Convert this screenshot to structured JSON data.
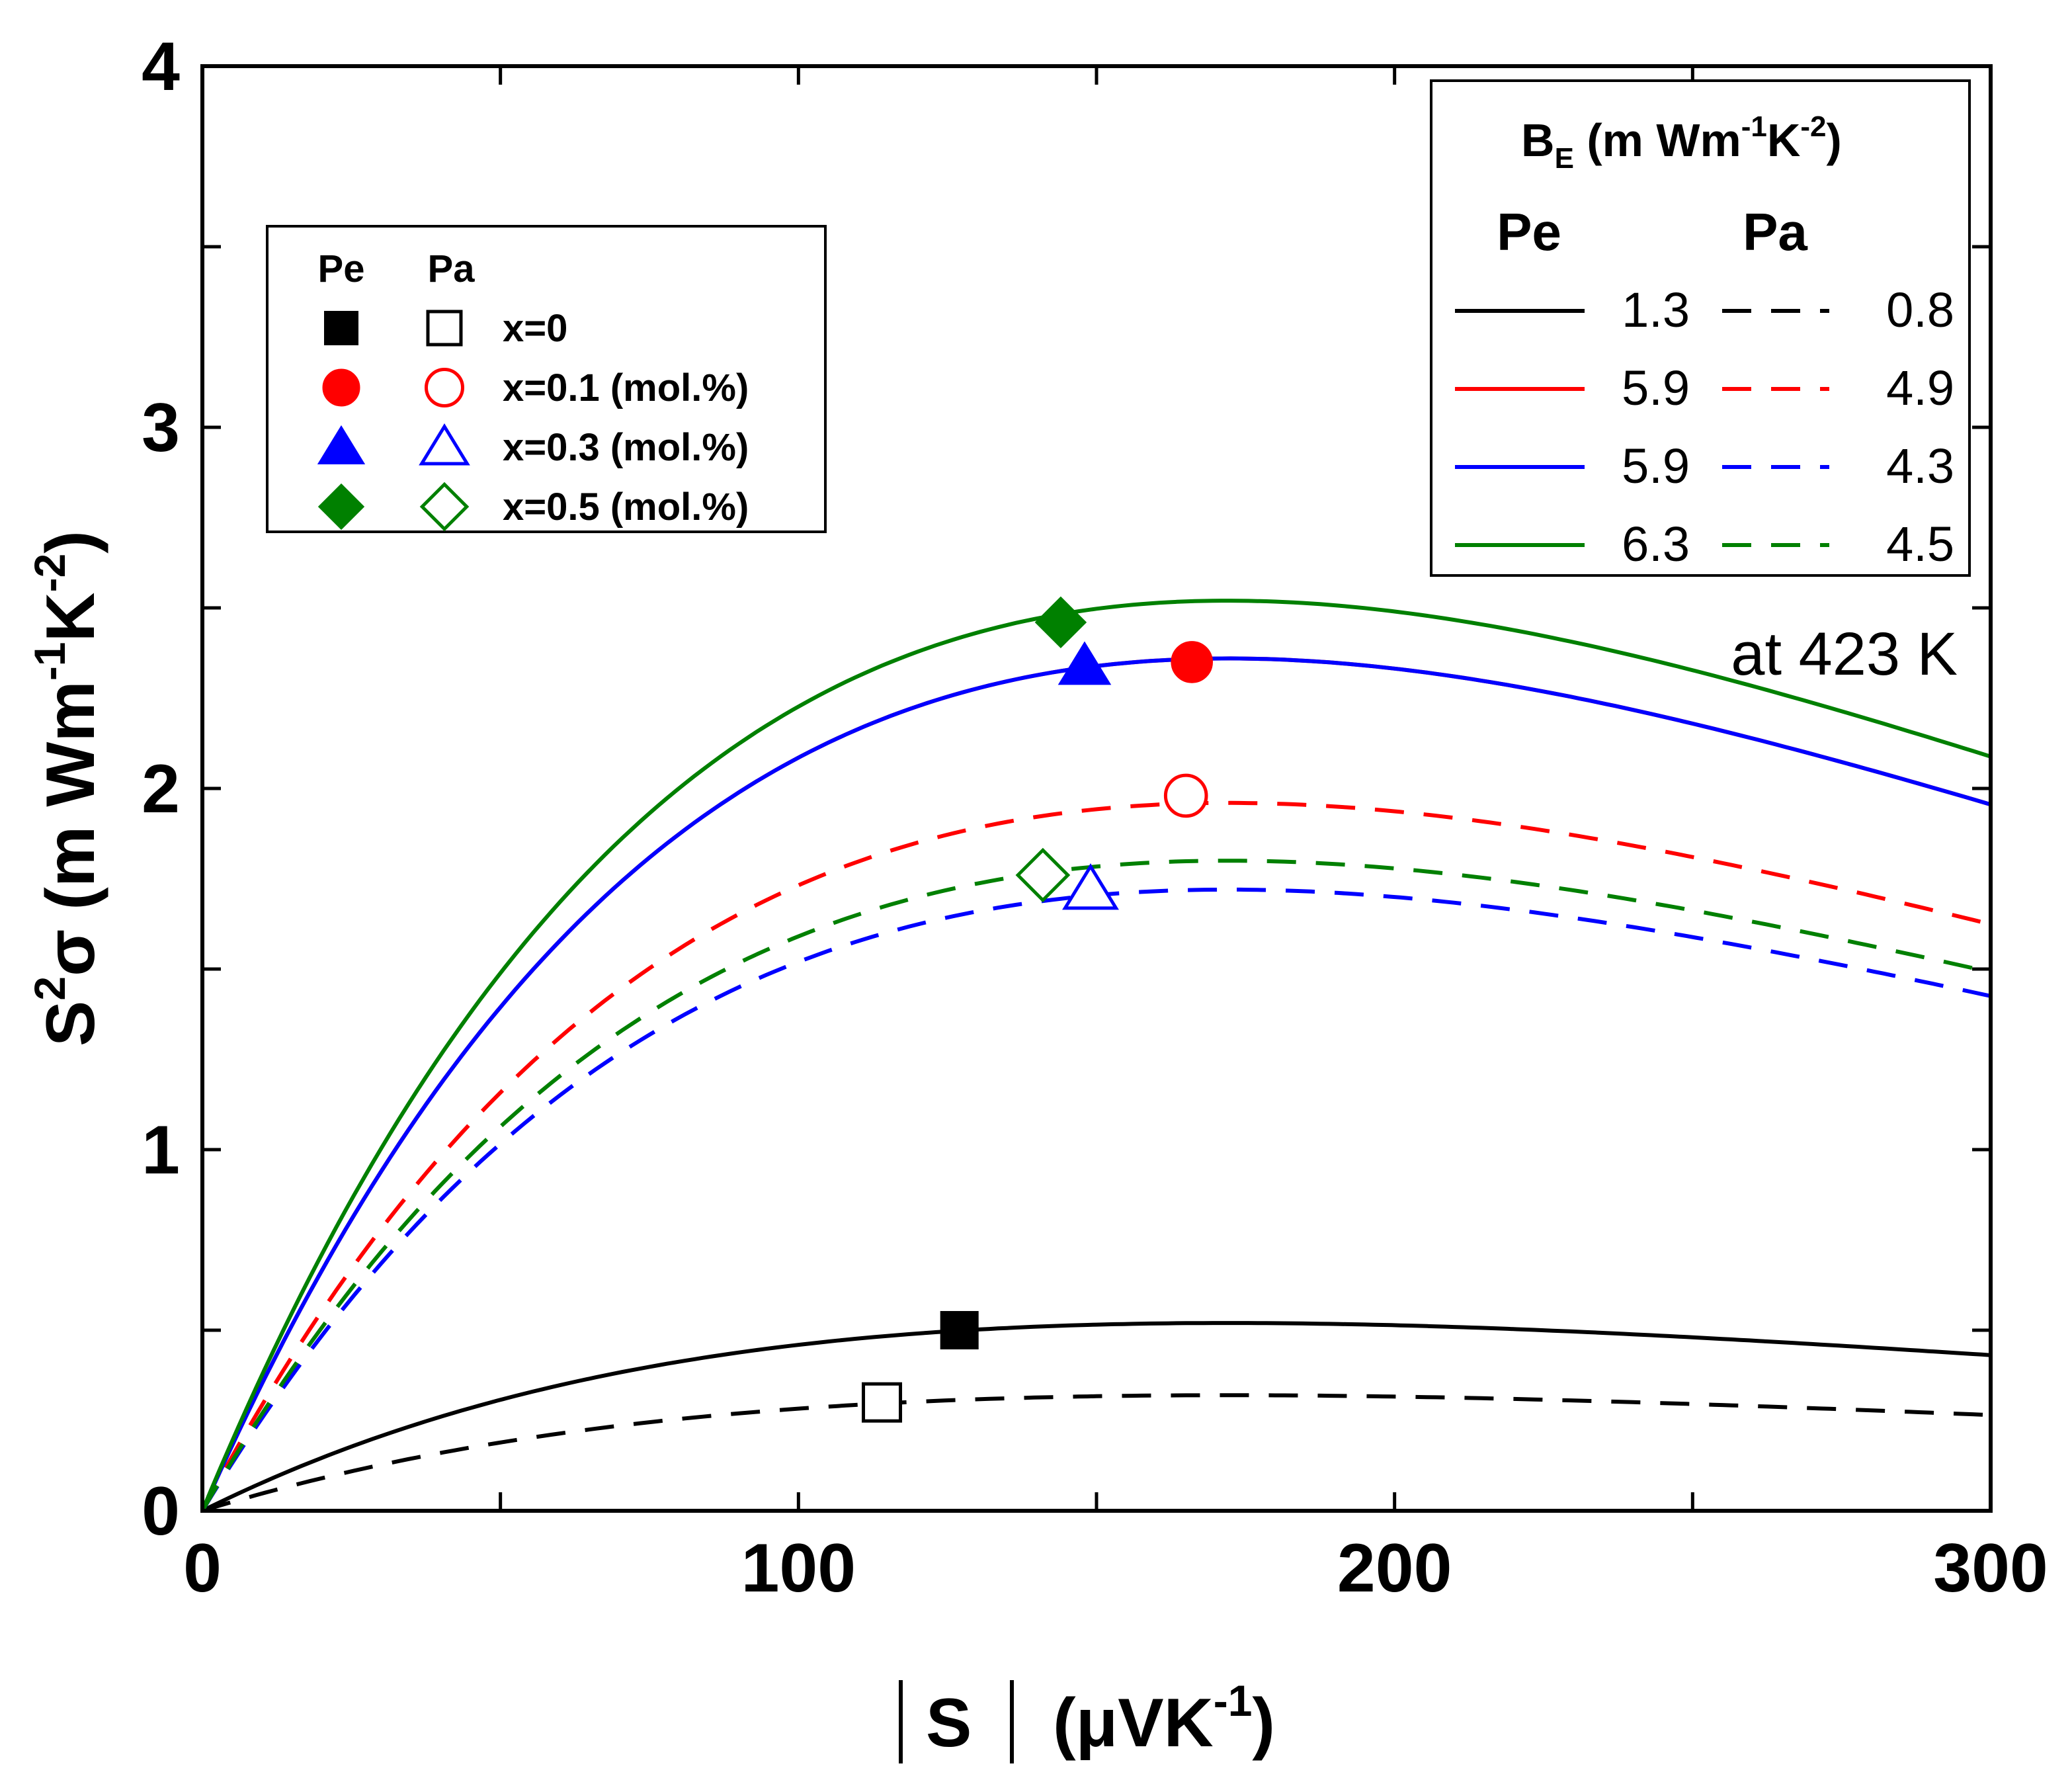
{
  "chart_data": {
    "type": "line",
    "title": "",
    "xlabel": "|S| (μVK⁻¹)",
    "xlabel_parts": {
      "var": "S",
      "unit": "(μVK",
      "exp": "-1",
      "close": ")"
    },
    "ylabel_parts": {
      "base": "S",
      "sup": "2",
      "sym": "σ",
      "unit": " (m Wm",
      "exp1": "-1",
      "k": "K",
      "exp2": "-2",
      "close": ")"
    },
    "xlim": [
      0,
      300
    ],
    "ylim": [
      0,
      4
    ],
    "x_ticks": [
      "0",
      "100",
      "200",
      "300"
    ],
    "y_ticks": [
      "0",
      "1",
      "2",
      "3",
      "4"
    ],
    "annotation": "at 423 K",
    "series": [
      {
        "name": "x=0 Pe",
        "BE": 1.3,
        "color": "#000000",
        "dash": false
      },
      {
        "name": "x=0 Pa",
        "BE": 0.8,
        "color": "#000000",
        "dash": true
      },
      {
        "name": "x=0.1 Pe",
        "BE": 5.9,
        "color": "#ff0000",
        "dash": false
      },
      {
        "name": "x=0.1 Pa",
        "BE": 4.9,
        "color": "#ff0000",
        "dash": true
      },
      {
        "name": "x=0.3 Pe",
        "BE": 5.9,
        "color": "#0000ff",
        "dash": false
      },
      {
        "name": "x=0.3 Pa",
        "BE": 4.3,
        "color": "#0000ff",
        "dash": true
      },
      {
        "name": "x=0.5 Pe",
        "BE": 6.3,
        "color": "#008000",
        "dash": false
      },
      {
        "name": "x=0.5 Pa",
        "BE": 4.5,
        "color": "#008000",
        "dash": true
      }
    ],
    "points": [
      {
        "label": "x=0 Pe",
        "marker": "square",
        "filled": true,
        "color": "#000000",
        "x": 127,
        "y": 0.5
      },
      {
        "label": "x=0 Pa",
        "marker": "square",
        "filled": false,
        "color": "#000000",
        "x": 114,
        "y": 0.3
      },
      {
        "label": "x=0.1 Pe",
        "marker": "circle",
        "filled": true,
        "color": "#ff0000",
        "x": 166,
        "y": 2.35
      },
      {
        "label": "x=0.1 Pa",
        "marker": "circle",
        "filled": false,
        "color": "#ff0000",
        "x": 165,
        "y": 1.98
      },
      {
        "label": "x=0.3 Pe",
        "marker": "triangle",
        "filled": true,
        "color": "#0000ff",
        "x": 148,
        "y": 2.34
      },
      {
        "label": "x=0.3 Pa",
        "marker": "triangle",
        "filled": false,
        "color": "#0000ff",
        "x": 149,
        "y": 1.72
      },
      {
        "label": "x=0.5 Pe",
        "marker": "diamond",
        "filled": true,
        "color": "#008000",
        "x": 144,
        "y": 2.46
      },
      {
        "label": "x=0.5 Pa",
        "marker": "diamond",
        "filled": false,
        "color": "#008000",
        "x": 141,
        "y": 1.76
      }
    ],
    "legend_markers": {
      "header_pe": "Pe",
      "header_pa": "Pa",
      "entries": [
        {
          "label": "x=0",
          "marker": "square",
          "color": "#000000"
        },
        {
          "label": "x=0.1 (mol.%)",
          "marker": "circle",
          "color": "#ff0000"
        },
        {
          "label": "x=0.3  (mol.%)",
          "marker": "triangle",
          "color": "#0000ff"
        },
        {
          "label": "x=0.5  (mol.%)",
          "marker": "diamond",
          "color": "#008000"
        }
      ]
    },
    "legend_lines": {
      "title_parts": {
        "b": "B",
        "sub": "E",
        "unit": " (m Wm",
        "exp1": "-1",
        "k": "K",
        "exp2": "-2",
        "close": ")"
      },
      "header_pe": "Pe",
      "header_pa": "Pa",
      "rows": [
        {
          "pe": "1.3",
          "pa": "0.8",
          "color": "#000000"
        },
        {
          "pe": "5.9",
          "pa": "4.9",
          "color": "#ff0000"
        },
        {
          "pe": "5.9",
          "pa": "4.3",
          "color": "#0000ff"
        },
        {
          "pe": "6.3",
          "pa": "4.5",
          "color": "#008000"
        }
      ]
    }
  }
}
